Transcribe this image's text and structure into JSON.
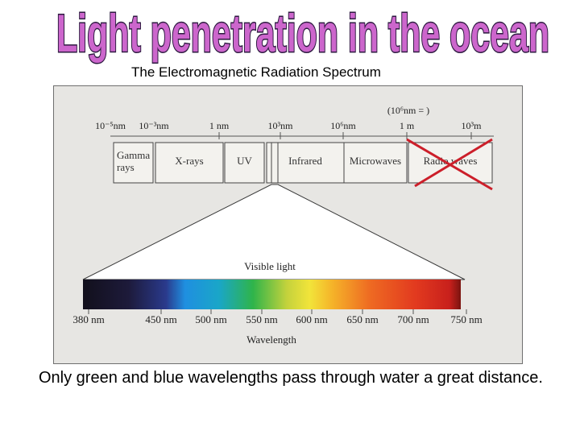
{
  "title": "Light penetration in the ocean",
  "subtitle": "The Electromagnetic Radiation Spectrum",
  "spectrum": {
    "scale_note": "(10⁶nm = )",
    "scale_labels": [
      {
        "text": "10⁻⁵nm",
        "tick": false
      },
      {
        "text": "10⁻³nm",
        "tick": false
      },
      {
        "text": "1 nm",
        "tick": true
      },
      {
        "text": "10³nm",
        "tick": true
      },
      {
        "text": "10⁶nm",
        "tick": true
      },
      {
        "text": "1 m",
        "tick": true
      },
      {
        "text": "10³m",
        "tick": true
      }
    ],
    "bands": [
      {
        "lines": [
          "Gamma",
          "rays"
        ]
      },
      {
        "lines": [
          "X-rays"
        ]
      },
      {
        "lines": [
          "UV"
        ]
      },
      {
        "lines": [
          "Infrared"
        ]
      },
      {
        "lines": [
          "Microwaves"
        ]
      },
      {
        "lines": [
          "Radio waves"
        ],
        "crossed_out": true
      }
    ],
    "visible_label": "Visible light",
    "wavelength_ticks": [
      "380 nm",
      "450 nm",
      "500 nm",
      "550 nm",
      "600 nm",
      "650 nm",
      "700 nm",
      "750 nm"
    ],
    "axis_label": "Wavelength",
    "colors": {
      "title_fill": "#cc66cc",
      "title_outline": "#2d1a40",
      "cross": "#cc1f2a",
      "band_fill": "#f3f2ee",
      "cone_fill": "#ffffff"
    }
  },
  "caption": "Only green and blue wavelengths pass through water a great distance."
}
